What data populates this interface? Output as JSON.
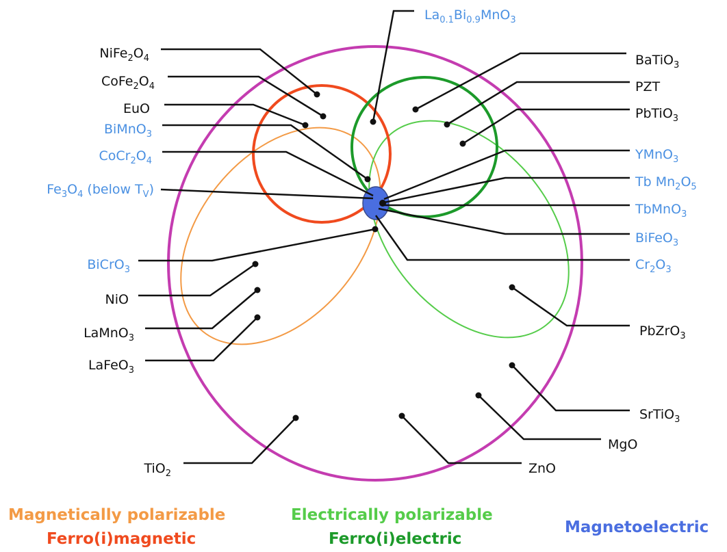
{
  "colors": {
    "magnetoelectric_set": "#c43cb0",
    "ferromagnetic_set": "#f04a1e",
    "mag_polarizable_set": "#f39a45",
    "ferroelectric_set": "#1c9a2a",
    "elec_polarizable_set": "#55cc4a",
    "multiferroic_core": "#4a6ee0",
    "label_black": "#111111",
    "label_blue": "#4a90e2"
  },
  "materials": [
    {
      "id": "La0.1Bi0.9MnO3",
      "text": "La0.1Bi0.9MnO3",
      "color": "blue"
    },
    {
      "id": "NiFe2O4",
      "text": "NiFe2O4",
      "color": "black"
    },
    {
      "id": "CoFe2O4",
      "text": "CoFe2O4",
      "color": "black"
    },
    {
      "id": "EuO",
      "text": "EuO",
      "color": "black"
    },
    {
      "id": "BiMnO3",
      "text": "BiMnO3",
      "color": "blue"
    },
    {
      "id": "CoCr2O4",
      "text": "CoCr2O4",
      "color": "blue"
    },
    {
      "id": "Fe3O4",
      "text": "Fe3O4 (below TV)",
      "color": "blue"
    },
    {
      "id": "BaTiO3",
      "text": "BaTiO3",
      "color": "black"
    },
    {
      "id": "PZT",
      "text": "PZT",
      "color": "black"
    },
    {
      "id": "PbTiO3",
      "text": "PbTiO3",
      "color": "black"
    },
    {
      "id": "YMnO3",
      "text": "YMnO3",
      "color": "blue"
    },
    {
      "id": "TbMn2O5",
      "text": "Tb Mn2O5",
      "color": "blue"
    },
    {
      "id": "TbMnO3",
      "text": "TbMnO3",
      "color": "blue"
    },
    {
      "id": "BiFeO3",
      "text": "BiFeO3",
      "color": "blue"
    },
    {
      "id": "Cr2O3",
      "text": "Cr2O3",
      "color": "blue"
    },
    {
      "id": "BiCrO3",
      "text": "BiCrO3",
      "color": "blue"
    },
    {
      "id": "NiO",
      "text": "NiO",
      "color": "black"
    },
    {
      "id": "LaMnO3",
      "text": "LaMnO3",
      "color": "black"
    },
    {
      "id": "LaFeO3",
      "text": "LaFeO3",
      "color": "black"
    },
    {
      "id": "PbZrO3",
      "text": "PbZrO3",
      "color": "black"
    },
    {
      "id": "SrTiO3",
      "text": "SrTiO3",
      "color": "black"
    },
    {
      "id": "MgO",
      "text": "MgO",
      "color": "black"
    },
    {
      "id": "TiO2",
      "text": "TiO2",
      "color": "black"
    },
    {
      "id": "ZnO",
      "text": "ZnO",
      "color": "black"
    }
  ],
  "legend": {
    "magnetically_polarizable": "Magnetically polarizable",
    "ferromagnetic": "Ferro(i)magnetic",
    "electrically_polarizable": "Electrically polarizable",
    "ferroelectric": "Ferro(i)electric",
    "magnetoelectric": "Magnetoelectric"
  }
}
